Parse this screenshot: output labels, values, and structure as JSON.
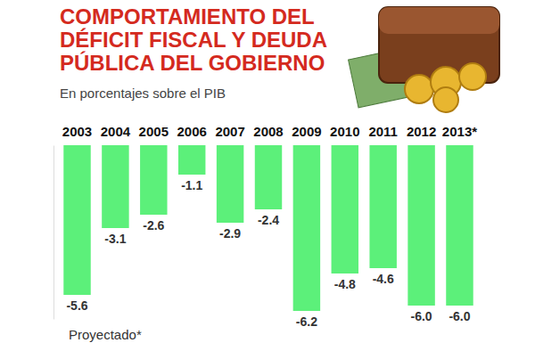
{
  "chart_data": {
    "type": "bar",
    "title": "COMPORTAMIENTO DEL DÉFICIT FISCAL Y DEUDA PÚBLICA DEL GOBIERNO",
    "subtitle": "En porcentajes sobre el PIB",
    "annotation": "Proyectado*",
    "categories": [
      "2003",
      "2004",
      "2005",
      "2006",
      "2007",
      "2008",
      "2009",
      "2010",
      "2011",
      "2012",
      "2013*"
    ],
    "values": [
      -5.6,
      -3.1,
      -2.6,
      -1.1,
      -2.9,
      -2.4,
      -6.2,
      -4.8,
      -4.6,
      -6.0,
      -6.0
    ],
    "value_labels": [
      "-5.6",
      "-3.1",
      "-2.6",
      "-1.1",
      "-2.9",
      "-2.4",
      "-6.2",
      "-4.8",
      "-4.6",
      "-6.0",
      "-6.0"
    ],
    "color": "#5cf07a",
    "ylim": [
      -6.5,
      0
    ],
    "data_labels": true,
    "tick_labels": "x",
    "grid": false
  }
}
